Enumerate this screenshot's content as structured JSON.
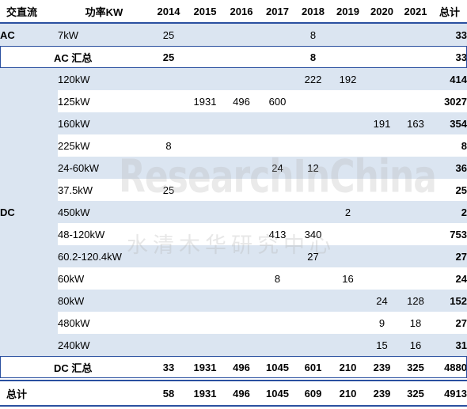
{
  "headers": [
    "交直流",
    "功率KW",
    "2014",
    "2015",
    "2016",
    "2017",
    "2018",
    "2019",
    "2020",
    "2021",
    "总计"
  ],
  "ac": {
    "type_label": "AC",
    "rows": [
      {
        "power": "7kW",
        "values": [
          "25",
          "",
          "",
          "",
          "8",
          "",
          "",
          ""
        ],
        "total": "33"
      }
    ],
    "subtotal": {
      "label": "AC 汇总",
      "values": [
        "25",
        "",
        "",
        "",
        "8",
        "",
        "",
        ""
      ],
      "total": "33"
    }
  },
  "dc": {
    "type_label": "DC",
    "rows": [
      {
        "power": "120kW",
        "values": [
          "",
          "",
          "",
          "",
          "222",
          "192",
          "",
          ""
        ],
        "total": "414"
      },
      {
        "power": "125kW",
        "values": [
          "",
          "1931",
          "496",
          "600",
          "",
          "",
          "",
          ""
        ],
        "total": "3027"
      },
      {
        "power": "160kW",
        "values": [
          "",
          "",
          "",
          "",
          "",
          "",
          "191",
          "163"
        ],
        "total": "354"
      },
      {
        "power": "225kW",
        "values": [
          "8",
          "",
          "",
          "",
          "",
          "",
          "",
          ""
        ],
        "total": "8"
      },
      {
        "power": "24-60kW",
        "values": [
          "",
          "",
          "",
          "24",
          "12",
          "",
          "",
          ""
        ],
        "total": "36"
      },
      {
        "power": "37.5kW",
        "values": [
          "25",
          "",
          "",
          "",
          "",
          "",
          "",
          ""
        ],
        "total": "25"
      },
      {
        "power": "450kW",
        "values": [
          "",
          "",
          "",
          "",
          "",
          "2",
          "",
          ""
        ],
        "total": "2"
      },
      {
        "power": "48-120kW",
        "values": [
          "",
          "",
          "",
          "413",
          "340",
          "",
          "",
          ""
        ],
        "total": "753"
      },
      {
        "power": "60.2-120.4kW",
        "values": [
          "",
          "",
          "",
          "",
          "27",
          "",
          "",
          ""
        ],
        "total": "27"
      },
      {
        "power": "60kW",
        "values": [
          "",
          "",
          "",
          "8",
          "",
          "16",
          "",
          ""
        ],
        "total": "24"
      },
      {
        "power": "80kW",
        "values": [
          "",
          "",
          "",
          "",
          "",
          "",
          "24",
          "128"
        ],
        "total": "152"
      },
      {
        "power": "480kW",
        "values": [
          "",
          "",
          "",
          "",
          "",
          "",
          "9",
          "18"
        ],
        "total": "27"
      },
      {
        "power": "240kW",
        "values": [
          "",
          "",
          "",
          "",
          "",
          "",
          "15",
          "16"
        ],
        "total": "31"
      }
    ],
    "subtotal": {
      "label": "DC 汇总",
      "values": [
        "33",
        "1931",
        "496",
        "1045",
        "601",
        "210",
        "239",
        "325"
      ],
      "total": "4880"
    }
  },
  "grand_total": {
    "label": "总计",
    "values": [
      "58",
      "1931",
      "496",
      "1045",
      "609",
      "210",
      "239",
      "325"
    ],
    "total": "4913"
  },
  "watermark": {
    "en": "ResearchInChina",
    "cn": "水清木华研究中心"
  },
  "colors": {
    "band": "#dbe5f1",
    "rule": "#2a50a0"
  }
}
